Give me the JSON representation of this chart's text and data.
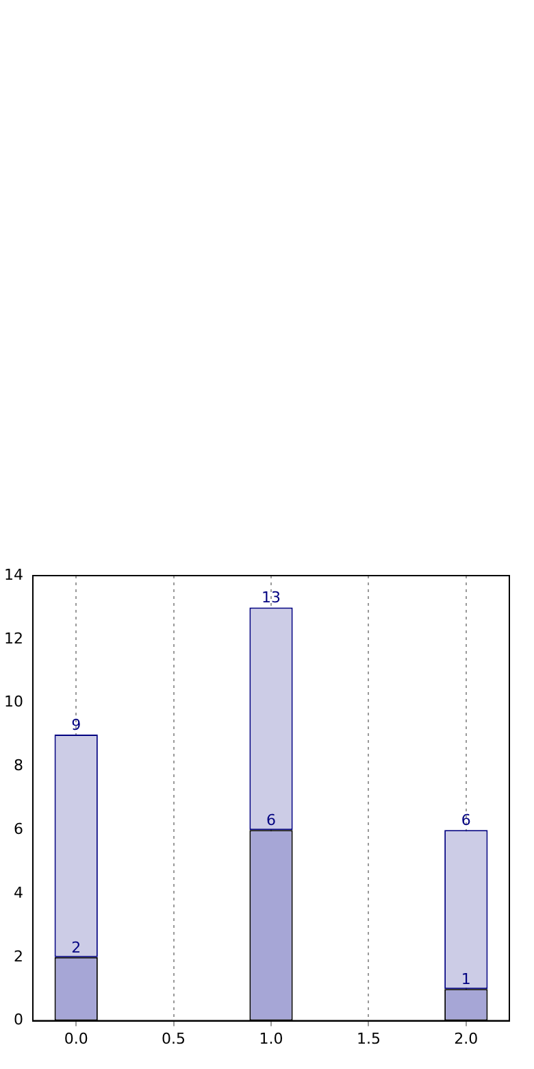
{
  "chart_data": {
    "type": "bar",
    "x": [
      0,
      1,
      2
    ],
    "stacked": true,
    "series": [
      {
        "color": "#a6a6d6",
        "values": [
          2,
          6,
          1
        ],
        "value_labels": [
          "2",
          "6",
          "1"
        ]
      },
      {
        "color": "#ccccE6",
        "values": [
          7,
          7,
          5
        ]
      }
    ],
    "totals": [
      "9",
      "13",
      "6"
    ],
    "xlim": [
      -0.222,
      2.222
    ],
    "ylim": [
      0,
      14
    ],
    "xticks": [
      {
        "value": 0,
        "label": "0.0"
      },
      {
        "value": 0.5,
        "label": "0.5"
      },
      {
        "value": 1,
        "label": "1.0"
      },
      {
        "value": 1.5,
        "label": "1.5"
      },
      {
        "value": 2,
        "label": "2.0"
      }
    ],
    "yticks": [
      0,
      2,
      4,
      6,
      8,
      10,
      12,
      14
    ],
    "grid": "x",
    "legend": false
  }
}
